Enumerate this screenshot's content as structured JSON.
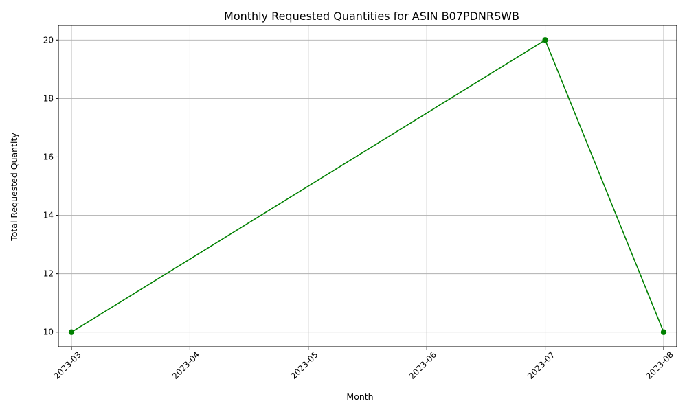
{
  "chart_data": {
    "type": "line",
    "title": "Monthly Requested Quantities for ASIN B07PDNRSWB",
    "xlabel": "Month",
    "ylabel": "Total Requested Quantity",
    "x_ticks": [
      "2023-03",
      "2023-04",
      "2023-05",
      "2023-06",
      "2023-07",
      "2023-08"
    ],
    "y_ticks": [
      10,
      12,
      14,
      16,
      18,
      20
    ],
    "ylim": [
      9.5,
      20.5
    ],
    "grid": true,
    "series": [
      {
        "color": "#008000",
        "marker": "circle",
        "x": [
          "2023-03",
          "2023-07",
          "2023-08"
        ],
        "y": [
          10,
          20,
          10
        ]
      }
    ]
  }
}
